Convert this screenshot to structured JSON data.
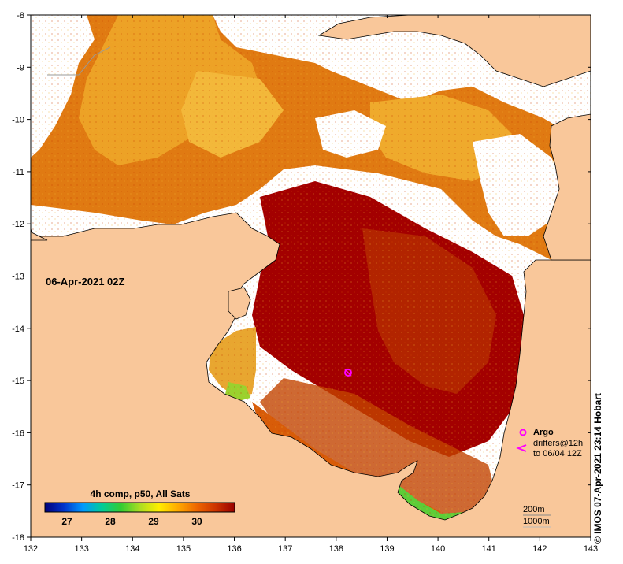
{
  "map": {
    "date_label": "06-Apr-2021 02Z",
    "x_axis": {
      "ticks": [
        "132",
        "133",
        "134",
        "135",
        "136",
        "137",
        "138",
        "139",
        "140",
        "141",
        "142",
        "143"
      ]
    },
    "y_axis": {
      "ticks": [
        "-8",
        "-9",
        "-10",
        "-11",
        "-12",
        "-13",
        "-14",
        "-15",
        "-16",
        "-17",
        "-18"
      ]
    },
    "colorbar": {
      "title": "4h comp, p50, All Sats",
      "ticks": [
        "27",
        "28",
        "29",
        "30"
      ],
      "stops": [
        "#00007a",
        "#0033cc",
        "#0099ff",
        "#00cc99",
        "#33cc33",
        "#aadd22",
        "#ffee00",
        "#ffaa00",
        "#ee6600",
        "#cc3300",
        "#990000"
      ]
    },
    "legend": {
      "argo_label": "Argo",
      "drifters_label": "drifters@12h",
      "drifters_range": "to 06/04 12Z",
      "isobath_200": "200m",
      "isobath_1000": "1000m"
    },
    "credit": "© IMOS 07-Apr-2021 23:14 Hobart",
    "colors": {
      "land": "#f9c79a",
      "sst_hot": "#a00000",
      "sst_warm": "#cc4400",
      "sst_mid": "#e37c10",
      "sst_light": "#f2a020",
      "no_data": "#ffffff",
      "argo": "#ff00ff"
    }
  }
}
